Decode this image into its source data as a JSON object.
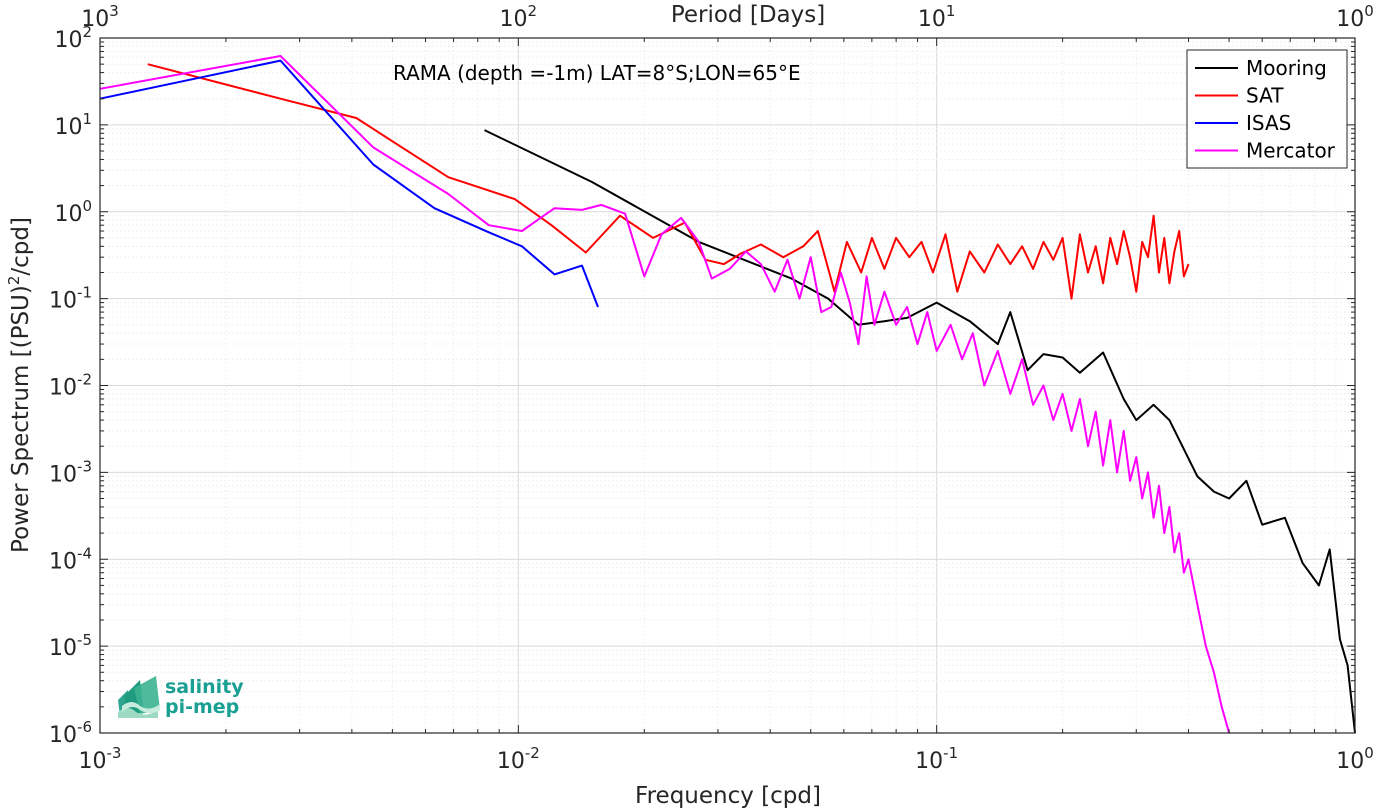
{
  "chart_data": {
    "type": "line",
    "annotation": "RAMA (depth =-1m) LAT=8°S;LON=65°E",
    "xlabel": "Frequency [cpd]",
    "ylabel": "Power Spectrum [(PSU)^2/cpd]",
    "top_xlabel": "Period [Days]",
    "xscale": "log",
    "yscale": "log",
    "xlim": [
      0.001,
      1
    ],
    "ylim": [
      1e-06,
      100
    ],
    "grid": true,
    "legend_position": "top-right",
    "x_ticks": [
      {
        "base": "10",
        "exp": "-3"
      },
      {
        "base": "10",
        "exp": "-2"
      },
      {
        "base": "10",
        "exp": "-1"
      },
      {
        "base": "10",
        "exp": "0"
      }
    ],
    "top_ticks": [
      {
        "base": "10",
        "exp": "3"
      },
      {
        "base": "10",
        "exp": "2"
      },
      {
        "base": "10",
        "exp": "1"
      },
      {
        "base": "10",
        "exp": "0"
      }
    ],
    "y_ticks": [
      {
        "base": "10",
        "exp": "2"
      },
      {
        "base": "10",
        "exp": "1"
      },
      {
        "base": "10",
        "exp": "0"
      },
      {
        "base": "10",
        "exp": "-1"
      },
      {
        "base": "10",
        "exp": "-2"
      },
      {
        "base": "10",
        "exp": "-3"
      },
      {
        "base": "10",
        "exp": "-4"
      },
      {
        "base": "10",
        "exp": "-5"
      },
      {
        "base": "10",
        "exp": "-6"
      }
    ],
    "series": [
      {
        "name": "Mooring",
        "color": "#000000",
        "x": [
          0.0083,
          0.015,
          0.027,
          0.045,
          0.055,
          0.065,
          0.075,
          0.085,
          0.1,
          0.12,
          0.14,
          0.15,
          0.165,
          0.18,
          0.2,
          0.22,
          0.25,
          0.28,
          0.3,
          0.33,
          0.36,
          0.42,
          0.46,
          0.5,
          0.55,
          0.6,
          0.68,
          0.75,
          0.82,
          0.87,
          0.92,
          0.96,
          1.0
        ],
        "y": [
          8.7,
          2.2,
          0.45,
          0.17,
          0.1,
          0.05,
          0.055,
          0.06,
          0.09,
          0.055,
          0.03,
          0.07,
          0.015,
          0.023,
          0.021,
          0.014,
          0.024,
          0.007,
          0.004,
          0.006,
          0.004,
          0.0009,
          0.0006,
          0.0005,
          0.0008,
          0.00025,
          0.0003,
          9e-05,
          5e-05,
          0.00013,
          1.2e-05,
          6e-06,
          1e-06
        ]
      },
      {
        "name": "SAT",
        "color": "#ff0000",
        "x": [
          0.0013,
          0.0027,
          0.0041,
          0.0068,
          0.0098,
          0.012,
          0.0145,
          0.0175,
          0.021,
          0.025,
          0.028,
          0.031,
          0.034,
          0.038,
          0.043,
          0.048,
          0.052,
          0.057,
          0.061,
          0.066,
          0.07,
          0.075,
          0.08,
          0.086,
          0.092,
          0.098,
          0.105,
          0.112,
          0.12,
          0.13,
          0.14,
          0.15,
          0.16,
          0.17,
          0.18,
          0.19,
          0.2,
          0.21,
          0.22,
          0.23,
          0.24,
          0.25,
          0.26,
          0.27,
          0.28,
          0.29,
          0.3,
          0.31,
          0.32,
          0.33,
          0.34,
          0.35,
          0.36,
          0.37,
          0.38,
          0.39,
          0.4
        ],
        "y": [
          50,
          20,
          12,
          2.5,
          1.4,
          0.7,
          0.34,
          0.9,
          0.5,
          0.75,
          0.28,
          0.25,
          0.33,
          0.42,
          0.3,
          0.4,
          0.6,
          0.12,
          0.45,
          0.2,
          0.5,
          0.22,
          0.5,
          0.3,
          0.45,
          0.2,
          0.55,
          0.12,
          0.35,
          0.2,
          0.42,
          0.25,
          0.4,
          0.22,
          0.45,
          0.28,
          0.5,
          0.1,
          0.55,
          0.2,
          0.4,
          0.15,
          0.5,
          0.25,
          0.6,
          0.3,
          0.12,
          0.45,
          0.3,
          0.9,
          0.2,
          0.5,
          0.15,
          0.35,
          0.6,
          0.18,
          0.25
        ]
      },
      {
        "name": "ISAS",
        "color": "#0000ff",
        "x": [
          0.001,
          0.0027,
          0.0045,
          0.0063,
          0.0085,
          0.0102,
          0.0122,
          0.0142,
          0.0155
        ],
        "y": [
          20,
          55,
          3.5,
          1.1,
          0.58,
          0.4,
          0.19,
          0.24,
          0.08
        ]
      },
      {
        "name": "Mercator",
        "color": "#ff00ff",
        "x": [
          0.001,
          0.0027,
          0.0045,
          0.0068,
          0.0085,
          0.0102,
          0.0122,
          0.0142,
          0.0158,
          0.018,
          0.02,
          0.022,
          0.0245,
          0.027,
          0.029,
          0.032,
          0.035,
          0.038,
          0.041,
          0.044,
          0.047,
          0.05,
          0.053,
          0.056,
          0.059,
          0.062,
          0.065,
          0.068,
          0.071,
          0.075,
          0.08,
          0.085,
          0.09,
          0.095,
          0.1,
          0.108,
          0.115,
          0.122,
          0.13,
          0.14,
          0.15,
          0.16,
          0.17,
          0.18,
          0.19,
          0.2,
          0.21,
          0.22,
          0.23,
          0.24,
          0.25,
          0.26,
          0.27,
          0.28,
          0.29,
          0.3,
          0.31,
          0.32,
          0.33,
          0.34,
          0.35,
          0.36,
          0.37,
          0.38,
          0.39,
          0.4,
          0.42,
          0.44,
          0.46,
          0.48,
          0.5
        ],
        "y": [
          26,
          62,
          5.5,
          1.6,
          0.7,
          0.6,
          1.1,
          1.05,
          1.2,
          0.95,
          0.18,
          0.55,
          0.85,
          0.45,
          0.17,
          0.22,
          0.35,
          0.25,
          0.12,
          0.28,
          0.1,
          0.3,
          0.07,
          0.08,
          0.2,
          0.09,
          0.03,
          0.18,
          0.05,
          0.12,
          0.05,
          0.08,
          0.03,
          0.07,
          0.025,
          0.05,
          0.02,
          0.04,
          0.01,
          0.025,
          0.008,
          0.02,
          0.006,
          0.01,
          0.004,
          0.008,
          0.003,
          0.007,
          0.002,
          0.005,
          0.0012,
          0.004,
          0.001,
          0.003,
          0.0008,
          0.0015,
          0.0005,
          0.001,
          0.0003,
          0.0007,
          0.0002,
          0.0004,
          0.00012,
          0.0002,
          7e-05,
          0.0001,
          3e-05,
          1e-05,
          5e-06,
          2e-06,
          1e-06
        ]
      }
    ]
  },
  "logo": {
    "line1": "salinity",
    "line2": "pi-mep"
  }
}
